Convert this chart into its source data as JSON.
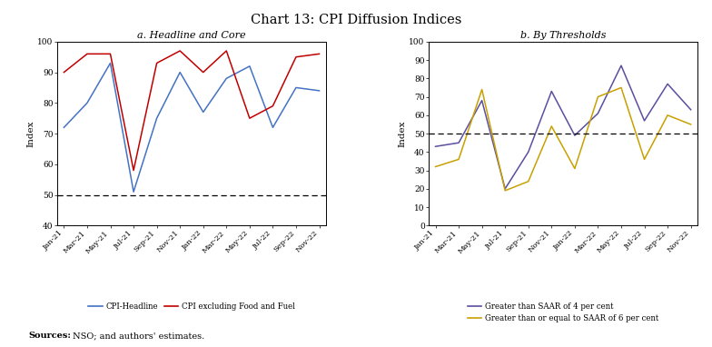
{
  "title": "Chart 13: CPI Diffusion Indices",
  "subtitle_a": "a. Headline and Core",
  "subtitle_b": "b. By Thresholds",
  "x_labels": [
    "Jan-21",
    "Mar-21",
    "May-21",
    "Jul-21",
    "Sep-21",
    "Nov-21",
    "Jan-22",
    "Mar-22",
    "May-22",
    "Jul-22",
    "Sep-22",
    "Nov-22"
  ],
  "headline": [
    72,
    80,
    93,
    51,
    75,
    90,
    77,
    88,
    92,
    72,
    85,
    84
  ],
  "core": [
    90,
    96,
    96,
    58,
    93,
    97,
    90,
    97,
    75,
    79,
    95,
    96
  ],
  "gt4": [
    43,
    45,
    68,
    20,
    40,
    73,
    49,
    61,
    87,
    57,
    77,
    63
  ],
  "gt6": [
    32,
    36,
    74,
    19,
    24,
    54,
    31,
    70,
    75,
    36,
    60,
    55
  ],
  "headline_color": "#4472c4",
  "core_color": "#c00000",
  "gt4_color": "#5b4ea0",
  "gt6_color": "#c8a000",
  "dashed_line": 50,
  "ylim_a": [
    40,
    100
  ],
  "ylim_b": [
    0,
    100
  ],
  "yticks_a": [
    40,
    50,
    60,
    70,
    80,
    90,
    100
  ],
  "yticks_b": [
    0,
    10,
    20,
    30,
    40,
    50,
    60,
    70,
    80,
    90,
    100
  ],
  "ylabel": "Index",
  "source_bold": "Sources:",
  "source_normal": " NSO; and authors' estimates.",
  "legend_a": [
    "CPI-Headline",
    "CPI excluding Food and Fuel"
  ],
  "legend_b": [
    "Greater than SAAR of 4 per cent",
    "Greater than or equal to SAAR of 6 per cent"
  ]
}
